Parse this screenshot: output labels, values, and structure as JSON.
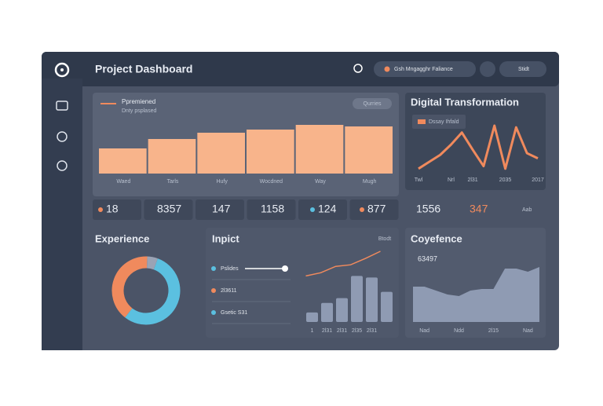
{
  "header": {
    "title": "Project Dashboard",
    "search": "Gsh Mngagghr Faliance",
    "button": "Stidt"
  },
  "stats": [
    18,
    8357,
    147,
    1158,
    124,
    877,
    1556,
    347
  ],
  "stats_note": "Aab",
  "chart_data": [
    {
      "type": "bar",
      "title": "Ppremiened",
      "subtitle": "Dnty psplased",
      "button": "Qurries",
      "categories": [
        "Waed",
        "Tarls",
        "Hufy",
        "Wocdned",
        "Way",
        "Mugh"
      ],
      "values": [
        32,
        44,
        52,
        56,
        62,
        60
      ],
      "color": "#f8b48b"
    },
    {
      "type": "line",
      "title": "Digital Transformation",
      "legend": "Dssay Ihfald",
      "categories": [
        "Twl",
        null,
        null,
        "Nrl",
        null,
        "2l31",
        null,
        null,
        "2035",
        null,
        null,
        "2017"
      ],
      "series": [
        {
          "color": "#f08a5d",
          "values": [
            2,
            10,
            18,
            30,
            44,
            24,
            5,
            52,
            2,
            50,
            20,
            14
          ]
        }
      ]
    },
    {
      "type": "pie",
      "title": "Experience",
      "values": [
        55,
        40,
        5
      ],
      "colors": [
        "#5bc0e0",
        "#f08a5d",
        "#9aa3b5"
      ]
    },
    {
      "type": "combo",
      "title": "Inpict",
      "note": "Btodt",
      "legend": [
        {
          "name": "Pslides",
          "color": "#5bc0e0"
        },
        {
          "name": "2l3611",
          "color": "#f08a5d"
        },
        {
          "name": "Gsetic S31",
          "color": "#5bc0e0"
        }
      ],
      "categories": [
        "1",
        "2l31",
        "2l31",
        "2l35",
        "2l31",
        null
      ],
      "series": [
        {
          "type": "bar",
          "color": "#8f9bb3",
          "values": [
            12,
            24,
            30,
            58,
            56,
            38
          ]
        },
        {
          "type": "line",
          "color": "#f08a5d",
          "values": [
            58,
            62,
            70,
            72,
            80,
            89
          ]
        }
      ]
    },
    {
      "type": "area",
      "title": "Coyefence",
      "subtitle": "63497",
      "categories": [
        null,
        "Nad",
        null,
        null,
        "Ndd",
        null,
        null,
        "2l15",
        null,
        null,
        "Nad",
        null
      ],
      "series": [
        {
          "color": "#8f9bb3",
          "values": [
            45,
            45,
            40,
            35,
            33,
            40,
            42,
            42,
            68,
            68,
            64,
            70
          ]
        }
      ]
    }
  ]
}
